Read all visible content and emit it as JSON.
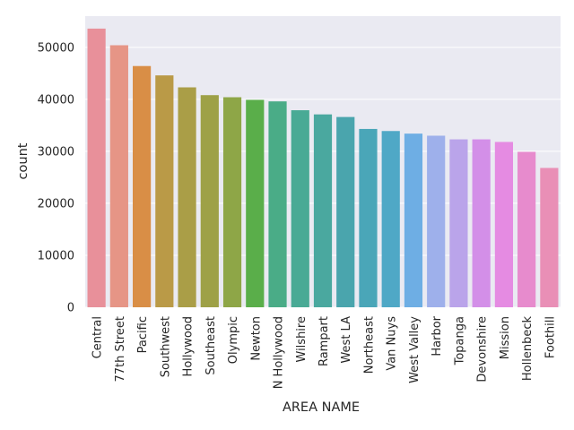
{
  "chart_data": {
    "type": "bar",
    "xlabel": "AREA NAME",
    "ylabel": "count",
    "ylim": [
      0,
      56000
    ],
    "yticks": [
      0,
      10000,
      20000,
      30000,
      40000,
      50000
    ],
    "grid": true,
    "background": "#eaeaf2",
    "grid_color": "#ffffff",
    "categories": [
      "Central",
      "77th Street",
      "Pacific",
      "Southwest",
      "Hollywood",
      "Southeast",
      "Olympic",
      "Newton",
      "N Hollywood",
      "Wilshire",
      "Rampart",
      "West LA",
      "Northeast",
      "Van Nuys",
      "West Valley",
      "Harbor",
      "Topanga",
      "Devonshire",
      "Mission",
      "Hollenbeck",
      "Foothill"
    ],
    "values": [
      53600,
      50400,
      46400,
      44600,
      42300,
      40800,
      40400,
      39900,
      39600,
      37900,
      37100,
      36600,
      34300,
      33900,
      33400,
      33000,
      32300,
      32300,
      31800,
      29900,
      26800
    ],
    "colors": [
      "#e8909a",
      "#e69586",
      "#d98e46",
      "#ba9a47",
      "#aa9e47",
      "#9ea147",
      "#8ea647",
      "#5aae4a",
      "#4aac87",
      "#49aa95",
      "#4aa89f",
      "#4aa5ad",
      "#4aa6b8",
      "#4fa8c6",
      "#6eaee4",
      "#9eb0eb",
      "#baa4ea",
      "#d38fe8",
      "#e58be2",
      "#e78bcd",
      "#e98fb6"
    ]
  }
}
